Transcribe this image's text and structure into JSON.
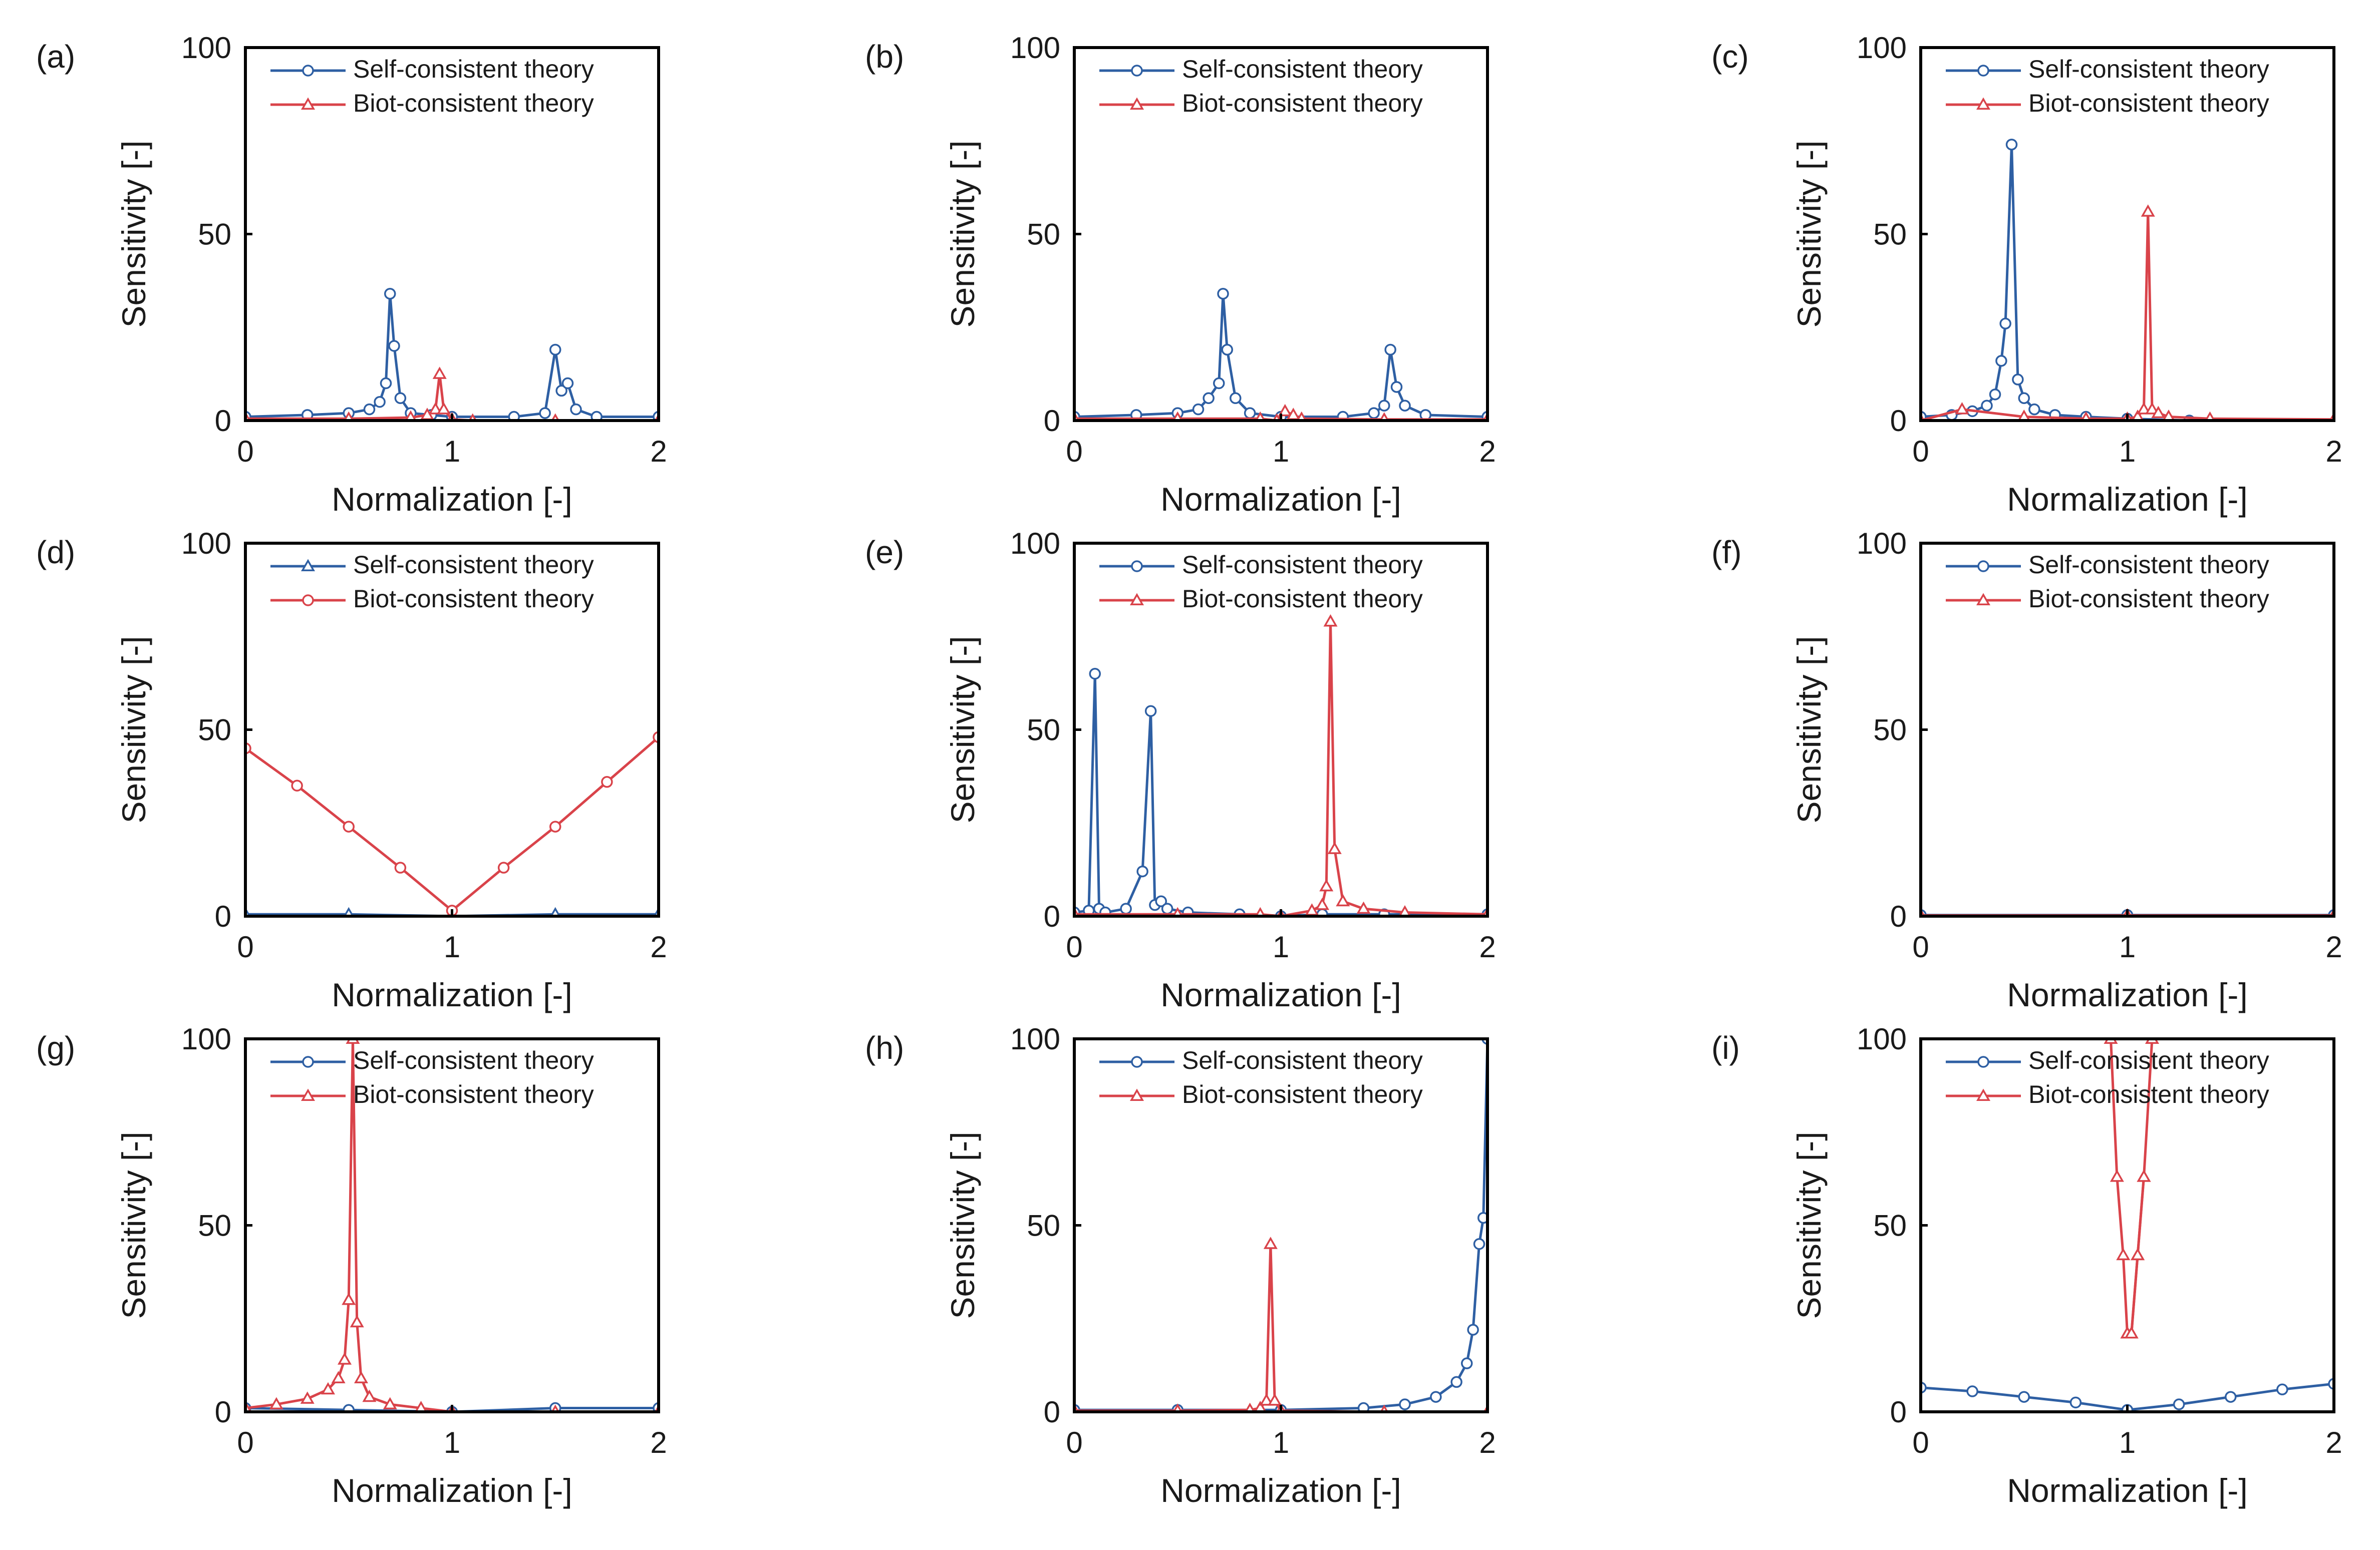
{
  "figure": {
    "legend_placement": "top-right",
    "colors": {
      "self": "#2e5fa3",
      "biot": "#d9434a",
      "frame": "#000000"
    }
  },
  "chart_data": [
    {
      "panel": "(a)",
      "type": "line",
      "xlabel": "Normalization [-]",
      "ylabel": "Sensitivity [-]",
      "xlim": [
        0,
        2
      ],
      "ylim": [
        0,
        100
      ],
      "xticks": [
        "0",
        "1",
        "2"
      ],
      "yticks": [
        "0",
        "50",
        "100"
      ],
      "series": [
        {
          "name": "Self-consistent theory",
          "marker": "circle",
          "x": [
            0,
            0.3,
            0.5,
            0.6,
            0.65,
            0.68,
            0.7,
            0.72,
            0.75,
            0.8,
            0.9,
            1.0,
            1.3,
            1.45,
            1.5,
            1.53,
            1.56,
            1.6,
            1.7,
            2.0
          ],
          "y": [
            1,
            1.5,
            2,
            3,
            5,
            10,
            34,
            20,
            6,
            2,
            1.5,
            1,
            1,
            2,
            19,
            8,
            10,
            3,
            1,
            1
          ]
        },
        {
          "name": "Biot-consistent theory",
          "marker": "triangle",
          "x": [
            0,
            0.5,
            0.8,
            0.88,
            0.92,
            0.94,
            0.96,
            1.0,
            1.1,
            1.5,
            2.0
          ],
          "y": [
            0.5,
            0.5,
            0.8,
            1.5,
            3,
            12.5,
            3,
            0.3,
            0,
            0,
            0
          ]
        }
      ]
    },
    {
      "panel": "(b)",
      "type": "line",
      "xlabel": "Normalization [-]",
      "ylabel": "Sensitivity [-]",
      "xlim": [
        0,
        2
      ],
      "ylim": [
        0,
        100
      ],
      "xticks": [
        "0",
        "1",
        "2"
      ],
      "yticks": [
        "0",
        "50",
        "100"
      ],
      "series": [
        {
          "name": "Self-consistent theory",
          "marker": "circle",
          "x": [
            0,
            0.3,
            0.5,
            0.6,
            0.65,
            0.7,
            0.72,
            0.74,
            0.78,
            0.85,
            1.0,
            1.3,
            1.45,
            1.5,
            1.53,
            1.56,
            1.6,
            1.7,
            2.0
          ],
          "y": [
            1,
            1.5,
            2,
            3,
            6,
            10,
            34,
            19,
            6,
            2,
            1,
            1,
            2,
            4,
            19,
            9,
            4,
            1.5,
            1
          ]
        },
        {
          "name": "Biot-consistent theory",
          "marker": "triangle",
          "x": [
            0,
            0.5,
            0.9,
            0.98,
            1.02,
            1.06,
            1.1,
            1.5,
            2.0
          ],
          "y": [
            0.5,
            0.5,
            0.5,
            0,
            2.5,
            1.5,
            0.5,
            0.3,
            0.3
          ]
        }
      ]
    },
    {
      "panel": "(c)",
      "type": "line",
      "xlabel": "Normalization [-]",
      "ylabel": "Sensitivity [-]",
      "xlim": [
        0,
        2
      ],
      "ylim": [
        0,
        100
      ],
      "xticks": [
        "0",
        "1",
        "2"
      ],
      "yticks": [
        "0",
        "50",
        "100"
      ],
      "series": [
        {
          "name": "Self-consistent theory",
          "marker": "circle",
          "x": [
            0,
            0.15,
            0.25,
            0.32,
            0.36,
            0.39,
            0.41,
            0.44,
            0.47,
            0.5,
            0.55,
            0.65,
            0.8,
            1.0,
            1.3
          ],
          "y": [
            1,
            1.5,
            2.5,
            4,
            7,
            16,
            26,
            74,
            11,
            6,
            3,
            1.5,
            1,
            0.5,
            0
          ]
        },
        {
          "name": "Biot-consistent theory",
          "marker": "triangle",
          "x": [
            0,
            0.2,
            0.5,
            0.8,
            1.0,
            1.05,
            1.08,
            1.1,
            1.12,
            1.15,
            1.2,
            1.4,
            2.0
          ],
          "y": [
            0,
            3,
            1,
            0.5,
            0.5,
            1,
            3,
            56,
            3,
            2,
            1,
            0.5,
            0.3
          ]
        }
      ]
    },
    {
      "panel": "(d)",
      "type": "line",
      "xlabel": "Normalization [-]",
      "ylabel": "Sensitivity [-]",
      "xlim": [
        0,
        2
      ],
      "ylim": [
        0,
        100
      ],
      "xticks": [
        "0",
        "1",
        "2"
      ],
      "yticks": [
        "0",
        "50",
        "100"
      ],
      "series": [
        {
          "name": "Self-consistent theory",
          "marker": "triangle",
          "x": [
            0,
            0.5,
            1.0,
            1.5,
            2.0
          ],
          "y": [
            0.5,
            0.5,
            0,
            0.5,
            0.5
          ]
        },
        {
          "name": "Biot-consistent theory",
          "marker": "circle",
          "x": [
            0,
            0.25,
            0.5,
            0.75,
            1.0,
            1.25,
            1.5,
            1.75,
            2.0
          ],
          "y": [
            45,
            35,
            24,
            13,
            1.5,
            13,
            24,
            36,
            48
          ]
        }
      ]
    },
    {
      "panel": "(e)",
      "type": "line",
      "xlabel": "Normalization [-]",
      "ylabel": "Sensitivity [-]",
      "xlim": [
        0,
        2
      ],
      "ylim": [
        0,
        100
      ],
      "xticks": [
        "0",
        "1",
        "2"
      ],
      "yticks": [
        "0",
        "50",
        "100"
      ],
      "series": [
        {
          "name": "Self-consistent theory",
          "marker": "circle",
          "x": [
            0,
            0.07,
            0.1,
            0.12,
            0.15,
            0.25,
            0.33,
            0.37,
            0.39,
            0.42,
            0.45,
            0.55,
            0.8,
            1.0,
            1.2,
            1.5,
            2.0
          ],
          "y": [
            1,
            1.5,
            65,
            2,
            1,
            2,
            12,
            55,
            3,
            4,
            2,
            1,
            0.5,
            0,
            0.5,
            0.5,
            0.5
          ]
        },
        {
          "name": "Biot-consistent theory",
          "marker": "triangle",
          "x": [
            0,
            0.5,
            0.9,
            1.0,
            1.15,
            1.2,
            1.22,
            1.24,
            1.26,
            1.3,
            1.4,
            1.6,
            2.0
          ],
          "y": [
            0.5,
            0.5,
            0.5,
            0,
            1.5,
            3,
            8,
            79,
            18,
            4,
            2,
            1,
            0.5
          ]
        }
      ]
    },
    {
      "panel": "(f)",
      "type": "line",
      "xlabel": "Normalization [-]",
      "ylabel": "Sensitivity [-]",
      "xlim": [
        0,
        2
      ],
      "ylim": [
        0,
        100
      ],
      "xticks": [
        "0",
        "1",
        "2"
      ],
      "yticks": [
        "0",
        "50",
        "100"
      ],
      "series": [
        {
          "name": "Self-consistent theory",
          "marker": "circle",
          "x": [
            0,
            1.0,
            2.0
          ],
          "y": [
            0.3,
            0.3,
            0.3
          ]
        },
        {
          "name": "Biot-consistent theory",
          "marker": "triangle",
          "x": [
            0,
            1.0,
            2.0
          ],
          "y": [
            0.2,
            0.2,
            0.2
          ]
        }
      ]
    },
    {
      "panel": "(g)",
      "type": "line",
      "xlabel": "Normalization [-]",
      "ylabel": "Sensitivity [-]",
      "xlim": [
        0,
        2
      ],
      "ylim": [
        0,
        100
      ],
      "xticks": [
        "0",
        "1",
        "2"
      ],
      "yticks": [
        "0",
        "50",
        "100"
      ],
      "series": [
        {
          "name": "Self-consistent theory",
          "marker": "circle",
          "x": [
            0,
            0.5,
            1.0,
            1.5,
            2.0
          ],
          "y": [
            1,
            0.5,
            0,
            1,
            1
          ]
        },
        {
          "name": "Biot-consistent theory",
          "marker": "triangle",
          "x": [
            0,
            0.15,
            0.3,
            0.4,
            0.45,
            0.48,
            0.5,
            0.52,
            0.54,
            0.56,
            0.6,
            0.7,
            0.85,
            1.0,
            1.5,
            2.0
          ],
          "y": [
            1,
            2,
            3.5,
            6,
            9,
            14,
            30,
            100,
            24,
            9,
            4,
            2,
            1,
            0,
            0,
            0
          ]
        }
      ]
    },
    {
      "panel": "(h)",
      "type": "line",
      "xlabel": "Normalization [-]",
      "ylabel": "Sensitivity [-]",
      "xlim": [
        0,
        2
      ],
      "ylim": [
        0,
        100
      ],
      "xticks": [
        "0",
        "1",
        "2"
      ],
      "yticks": [
        "0",
        "50",
        "100"
      ],
      "series": [
        {
          "name": "Self-consistent theory",
          "marker": "circle",
          "x": [
            0,
            0.5,
            1.0,
            1.4,
            1.6,
            1.75,
            1.85,
            1.9,
            1.93,
            1.96,
            1.98,
            2.0
          ],
          "y": [
            0.5,
            0.5,
            0.5,
            1,
            2,
            4,
            8,
            13,
            22,
            45,
            52,
            100
          ]
        },
        {
          "name": "Biot-consistent theory",
          "marker": "triangle",
          "x": [
            0,
            0.5,
            0.85,
            0.9,
            0.93,
            0.95,
            0.97,
            1.0,
            1.5,
            2.0
          ],
          "y": [
            0.3,
            0.3,
            0.5,
            1,
            3,
            45,
            3,
            0.3,
            0,
            0
          ]
        }
      ]
    },
    {
      "panel": "(i)",
      "type": "line",
      "xlabel": "Normalization [-]",
      "ylabel": "Sensitivity [-]",
      "xlim": [
        0,
        2
      ],
      "ylim": [
        0,
        100
      ],
      "xticks": [
        "0",
        "1",
        "2"
      ],
      "yticks": [
        "0",
        "50",
        "100"
      ],
      "series": [
        {
          "name": "Self-consistent theory",
          "marker": "circle",
          "x": [
            0,
            0.25,
            0.5,
            0.75,
            1.0,
            1.25,
            1.5,
            1.75,
            2.0
          ],
          "y": [
            6.5,
            5.5,
            4,
            2.5,
            0.5,
            2,
            4,
            6,
            7.5
          ]
        },
        {
          "name": "Biot-consistent theory",
          "marker": "triangle",
          "x": [
            0.92,
            0.95,
            0.98,
            1.0,
            1.02,
            1.05,
            1.08
          ],
          "y": [
            100,
            63,
            42,
            21,
            21,
            42,
            63
          ]
        },
        {
          "name": "Biot-consistent theory",
          "marker": "triangle",
          "x": [
            1.0,
            1.02,
            1.05,
            1.08,
            1.12
          ],
          "y": [
            21,
            21,
            42,
            63,
            100
          ]
        }
      ]
    }
  ]
}
